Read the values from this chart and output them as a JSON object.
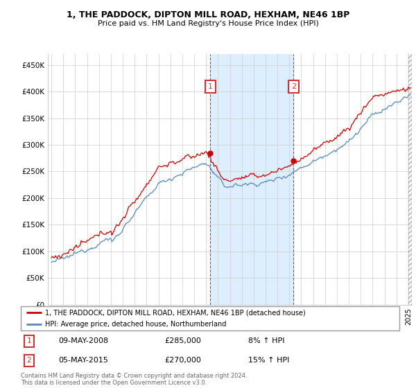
{
  "title": "1, THE PADDOCK, DIPTON MILL ROAD, HEXHAM, NE46 1BP",
  "subtitle": "Price paid vs. HM Land Registry's House Price Index (HPI)",
  "yticks": [
    0,
    50000,
    100000,
    150000,
    200000,
    250000,
    300000,
    350000,
    400000,
    450000
  ],
  "ylim": [
    0,
    470000
  ],
  "xlim_start": 1994.7,
  "xlim_end": 2025.3,
  "sale1_date": 2008.35,
  "sale1_price": 285000,
  "sale1_label": "09-MAY-2008",
  "sale1_pct": "8% ↑ HPI",
  "sale2_date": 2015.35,
  "sale2_price": 270000,
  "sale2_label": "05-MAY-2015",
  "sale2_pct": "15% ↑ HPI",
  "red_line_color": "#cc0000",
  "blue_line_color": "#5588bb",
  "shade_color": "#ddeeff",
  "annotation_box_color": "#cc3333",
  "grid_color": "#cccccc",
  "background_color": "#ffffff",
  "legend_label_red": "1, THE PADDOCK, DIPTON MILL ROAD, HEXHAM, NE46 1BP (detached house)",
  "legend_label_blue": "HPI: Average price, detached house, Northumberland",
  "footer_text": "Contains HM Land Registry data © Crown copyright and database right 2024.\nThis data is licensed under the Open Government Licence v3.0."
}
